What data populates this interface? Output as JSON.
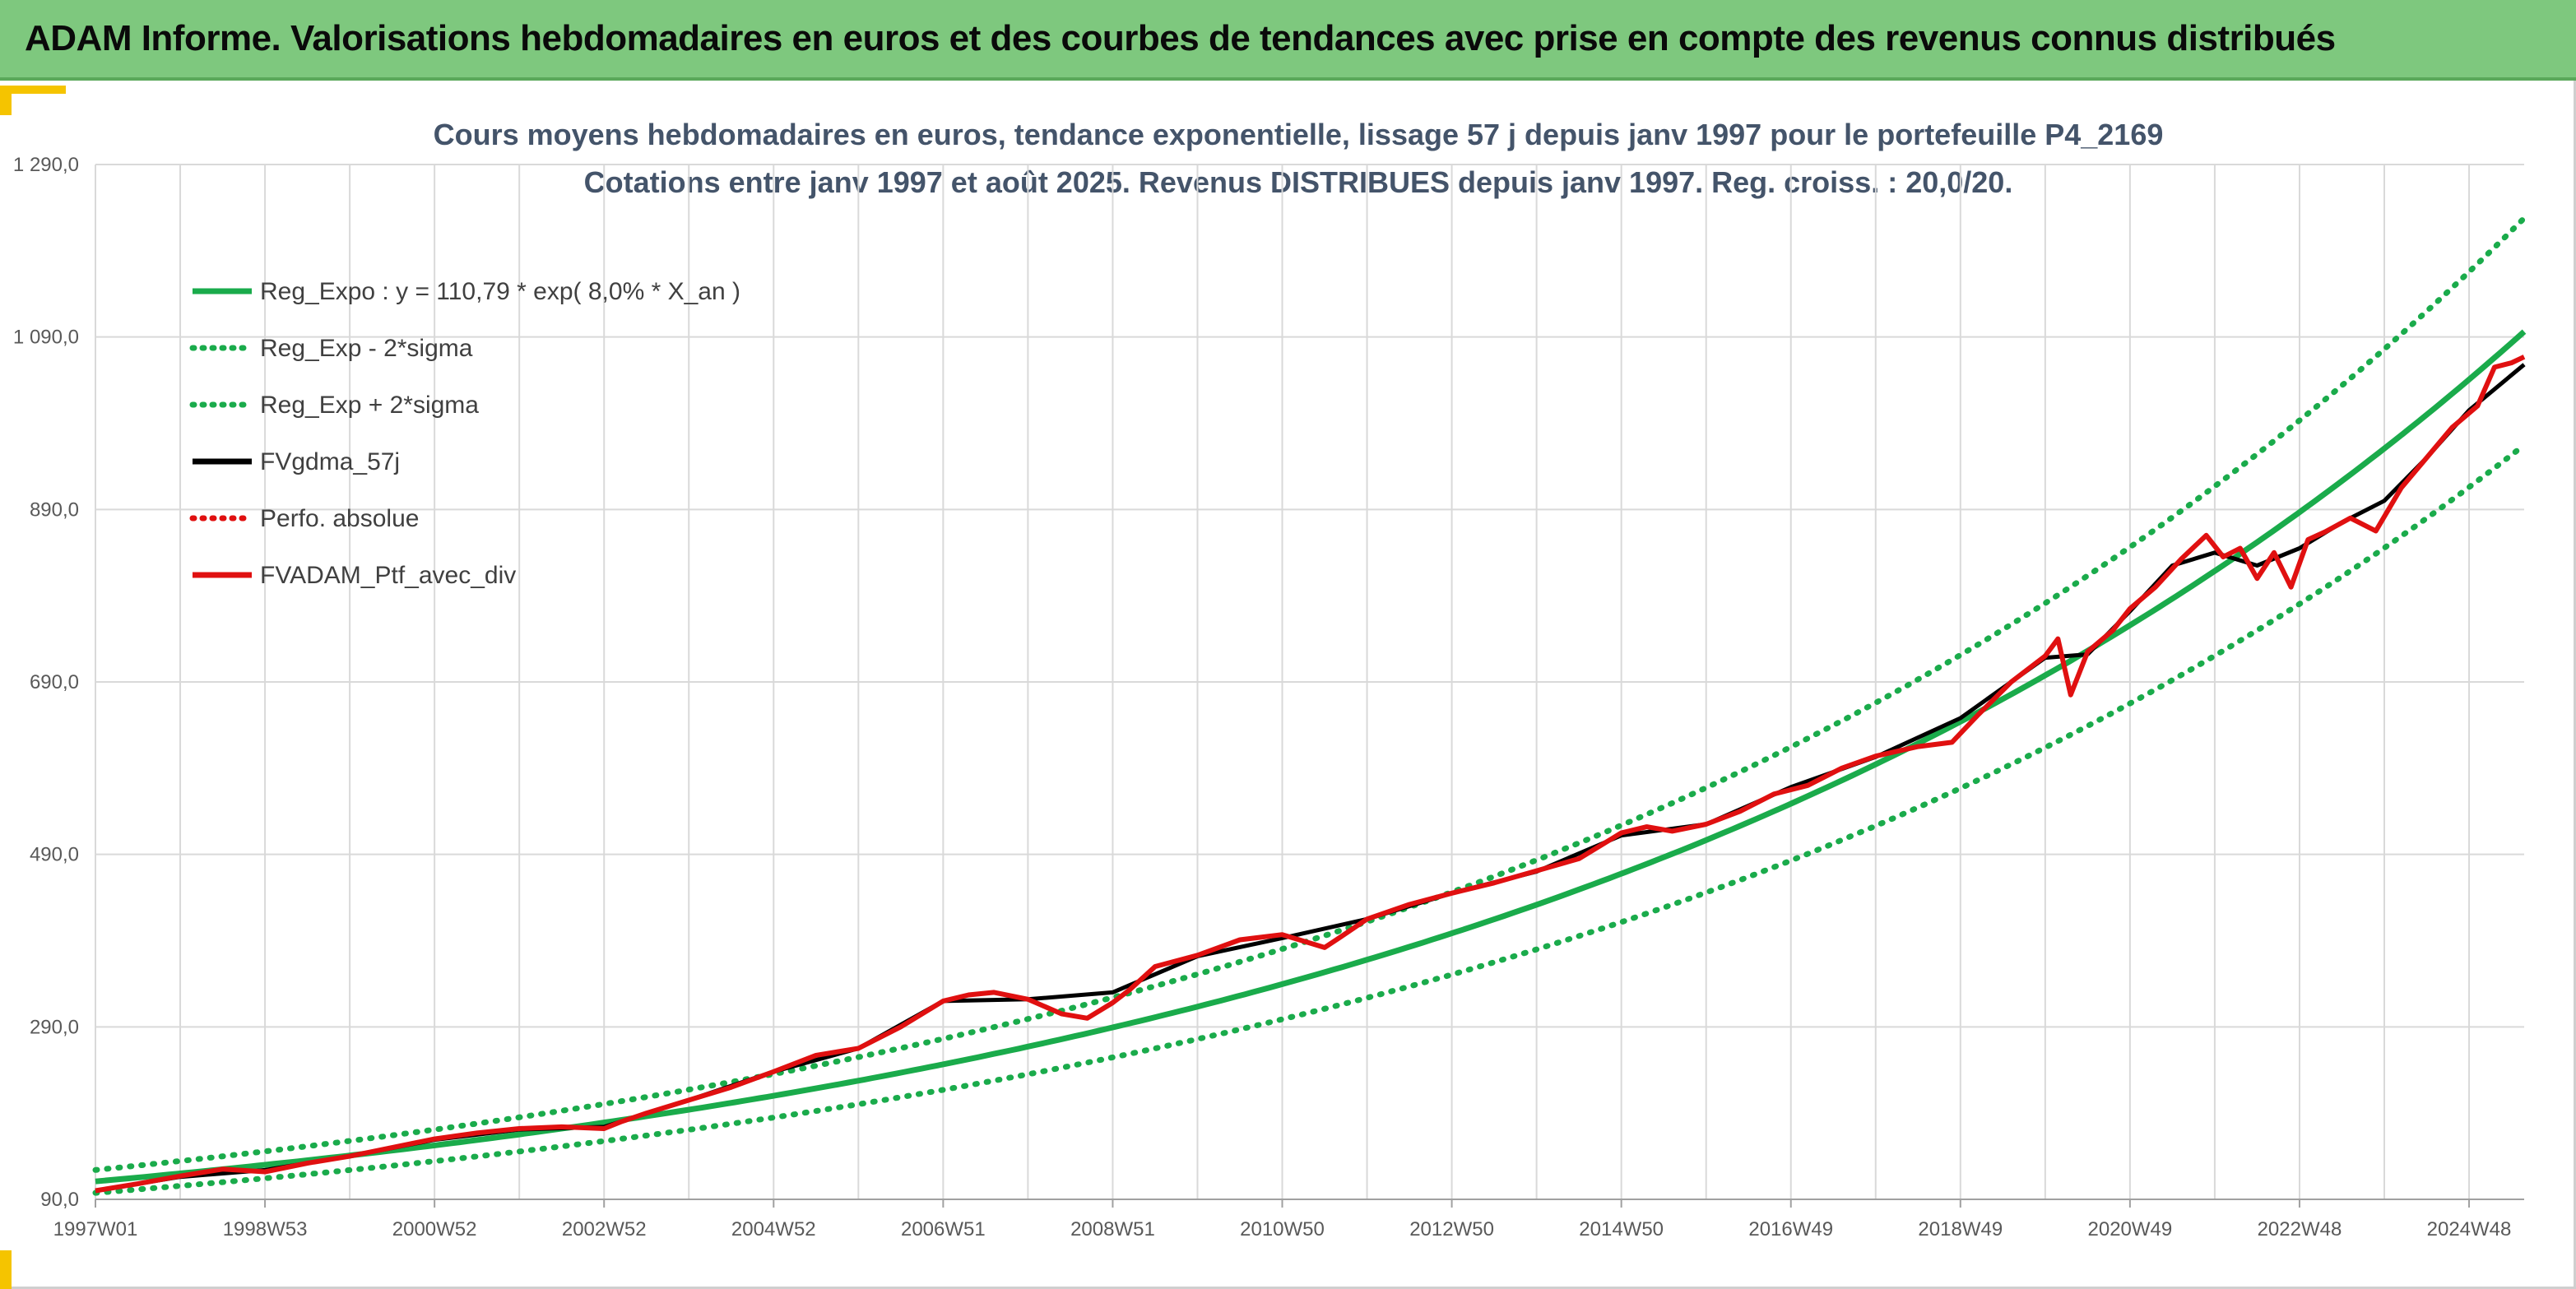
{
  "header": {
    "title": "ADAM Informe. Valorisations hebdomadaires en euros et des courbes de tendances avec prise en compte des revenus connus distribués"
  },
  "colors": {
    "header_bg": "#7ec87e",
    "regression": "#1aab4b",
    "sigma": "#1aab4b",
    "gdma": "#000000",
    "perfo": "#e01010",
    "portfolio": "#e01010",
    "grid": "#d9d9d9"
  },
  "chart_data": {
    "type": "line",
    "title": "Cours moyens hebdomadaires en euros, tendance exponentielle, lissage 57 j depuis janv 1997 pour le portefeuille P4_2169",
    "subtitle": "Cotations entre janv 1997 et août 2025. Revenus DISTRIBUES depuis janv 1997. Reg. croiss. : 20,0/20.",
    "xlabel": "",
    "ylabel": "",
    "ylim": [
      90,
      1290
    ],
    "y_ticks": [
      "1 290,0",
      "1 090,0",
      "890,0",
      "690,0",
      "490,0",
      "290,0",
      "90,0"
    ],
    "x_ticks": [
      "1997W01",
      "1998W53",
      "2000W52",
      "2002W52",
      "2004W52",
      "2006W51",
      "2008W51",
      "2010W50",
      "2012W50",
      "2014W50",
      "2016W49",
      "2018W49",
      "2020W49",
      "2022W48",
      "2024W48"
    ],
    "x_range_years": [
      1997.0,
      2025.65
    ],
    "legend": [
      {
        "label": "Reg_Expo : y = 110,79 * exp( 8,0% *  X_an )",
        "style": "solid",
        "color": "#1aab4b"
      },
      {
        "label": "Reg_Exp - 2*sigma",
        "style": "dotted",
        "color": "#1aab4b"
      },
      {
        "label": "Reg_Exp + 2*sigma",
        "style": "dotted",
        "color": "#1aab4b"
      },
      {
        "label": "FVgdma_57j",
        "style": "solid",
        "color": "#000000"
      },
      {
        "label": "Perfo. absolue",
        "style": "dotted",
        "color": "#e01010"
      },
      {
        "label": "FVADAM_Ptf_avec_div",
        "style": "solid",
        "color": "#e01010"
      }
    ],
    "legend_position": "top-left",
    "grid": true,
    "regression": {
      "a": 110.79,
      "rate": 0.08,
      "sigma_factor_low": 0.88,
      "sigma_factor_high": 1.12
    },
    "series": [
      {
        "name": "FVADAM_Ptf_avec_div",
        "x": [
          1997.0,
          1997.5,
          1998.0,
          1998.5,
          1999.0,
          1999.5,
          2000.0,
          2000.5,
          2001.0,
          2001.5,
          2002.0,
          2002.5,
          2003.0,
          2003.2,
          2003.5,
          2004.0,
          2004.5,
          2005.0,
          2005.5,
          2006.0,
          2006.5,
          2007.0,
          2007.3,
          2007.6,
          2008.0,
          2008.4,
          2008.7,
          2009.0,
          2009.2,
          2009.5,
          2010.0,
          2010.5,
          2011.0,
          2011.5,
          2011.7,
          2012.0,
          2012.5,
          2013.0,
          2013.5,
          2014.0,
          2014.5,
          2015.0,
          2015.3,
          2015.6,
          2016.0,
          2016.4,
          2016.8,
          2017.2,
          2017.6,
          2018.0,
          2018.5,
          2018.9,
          2019.2,
          2019.6,
          2020.0,
          2020.15,
          2020.3,
          2020.5,
          2020.8,
          2021.0,
          2021.3,
          2021.6,
          2021.9,
          2022.1,
          2022.3,
          2022.5,
          2022.7,
          2022.9,
          2023.1,
          2023.3,
          2023.6,
          2023.9,
          2024.2,
          2024.5,
          2024.8,
          2025.1,
          2025.3,
          2025.5,
          2025.65
        ],
        "values": [
          100,
          108,
          117,
          125,
          122,
          132,
          140,
          150,
          160,
          167,
          172,
          174,
          172,
          180,
          190,
          205,
          220,
          238,
          257,
          265,
          290,
          320,
          327,
          330,
          322,
          305,
          300,
          318,
          333,
          360,
          373,
          391,
          397,
          382,
          395,
          415,
          432,
          445,
          457,
          471,
          485,
          515,
          522,
          517,
          525,
          540,
          560,
          570,
          590,
          604,
          615,
          620,
          651,
          690,
          720,
          740,
          675,
          725,
          750,
          775,
          800,
          832,
          860,
          835,
          845,
          810,
          840,
          800,
          855,
          864,
          880,
          865,
          915,
          950,
          985,
          1010,
          1055,
          1060,
          1067
        ]
      },
      {
        "name": "FVgdma_57j",
        "x": [
          1997.0,
          1998.0,
          1999.0,
          2000.0,
          2001.0,
          2002.0,
          2003.0,
          2004.0,
          2005.0,
          2006.0,
          2007.0,
          2008.0,
          2009.0,
          2010.0,
          2011.0,
          2012.0,
          2013.0,
          2014.0,
          2015.0,
          2016.0,
          2017.0,
          2018.0,
          2019.0,
          2020.0,
          2020.5,
          2021.0,
          2021.5,
          2022.0,
          2022.5,
          2023.0,
          2023.5,
          2024.0,
          2024.5,
          2025.0,
          2025.65
        ],
        "values": [
          100,
          116,
          124,
          140,
          159,
          171,
          174,
          205,
          238,
          265,
          320,
          322,
          330,
          372,
          393,
          415,
          445,
          470,
          512,
          525,
          568,
          603,
          648,
          718,
          722,
          772,
          825,
          840,
          825,
          845,
          875,
          900,
          950,
          1005,
          1058
        ]
      }
    ]
  }
}
